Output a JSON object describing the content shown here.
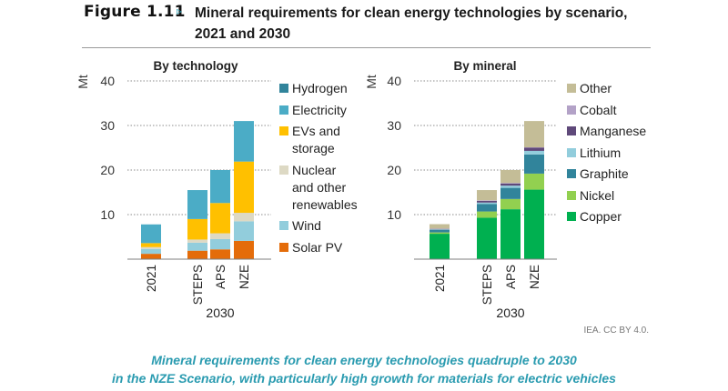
{
  "figure": {
    "number": "Figure 1.11",
    "marker": "▹",
    "title": "Mineral requirements for clean energy technologies by scenario, 2021 and 2030"
  },
  "credit": "IEA. CC BY 4.0.",
  "caption": {
    "line1": "Mineral requirements for clean energy technologies quadruple to 2030",
    "line2": "in the NZE Scenario, with particularly high growth for materials for electric vehicles",
    "color": "#2a9bb0"
  },
  "chart_data": [
    {
      "type": "bar",
      "stacked": true,
      "title": "By technology",
      "ylabel": "Mt",
      "xlabel": "",
      "ylim": [
        0,
        40
      ],
      "yticks": [
        10,
        20,
        30,
        40
      ],
      "grid": true,
      "categories": [
        "2021",
        "STEPS",
        "APS",
        "NZE"
      ],
      "category_group": {
        "label": "2030",
        "members": [
          "STEPS",
          "APS",
          "NZE"
        ]
      },
      "legend_position": "right",
      "series": [
        {
          "name": "Solar PV",
          "color": "#e46c0a",
          "values": [
            1.2,
            1.9,
            2.2,
            4.1
          ]
        },
        {
          "name": "Wind",
          "color": "#92cddc",
          "values": [
            1.1,
            1.8,
            2.3,
            4.4
          ]
        },
        {
          "name": "Nuclear\nand other\nrenewables",
          "color": "#ddd9c4",
          "values": [
            0.4,
            0.7,
            1.3,
            1.9
          ]
        },
        {
          "name": "EVs and\nstorage",
          "color": "#ffc000",
          "values": [
            0.9,
            4.6,
            6.8,
            11.5
          ]
        },
        {
          "name": "Electricity",
          "color": "#4bacc6",
          "values": [
            4.2,
            6.5,
            7.4,
            9.1
          ]
        },
        {
          "name": "Hydrogen",
          "color": "#31849b",
          "values": [
            0,
            0,
            0,
            0
          ]
        }
      ],
      "legend_order": [
        "Hydrogen",
        "Electricity",
        "EVs and\nstorage",
        "Nuclear\nand other\nrenewables",
        "Wind",
        "Solar PV"
      ]
    },
    {
      "type": "bar",
      "stacked": true,
      "title": "By mineral",
      "ylabel": "Mt",
      "xlabel": "",
      "ylim": [
        0,
        40
      ],
      "yticks": [
        10,
        20,
        30,
        40
      ],
      "grid": true,
      "categories": [
        "2021",
        "STEPS",
        "APS",
        "NZE"
      ],
      "category_group": {
        "label": "2030",
        "members": [
          "STEPS",
          "APS",
          "NZE"
        ]
      },
      "legend_position": "right",
      "series": [
        {
          "name": "Copper",
          "color": "#00b050",
          "values": [
            5.7,
            9.3,
            11.2,
            15.6
          ]
        },
        {
          "name": "Nickel",
          "color": "#92d050",
          "values": [
            0.3,
            1.4,
            2.3,
            3.6
          ]
        },
        {
          "name": "Graphite",
          "color": "#31849b",
          "values": [
            0.6,
            1.7,
            2.5,
            4.3
          ]
        },
        {
          "name": "Lithium",
          "color": "#92cddc",
          "values": [
            0.1,
            0.3,
            0.5,
            0.8
          ]
        },
        {
          "name": "Manganese",
          "color": "#5f497a",
          "values": [
            0.1,
            0.4,
            0.5,
            0.7
          ]
        },
        {
          "name": "Cobalt",
          "color": "#b3a2c7",
          "values": [
            0.05,
            0.1,
            0.1,
            0.1
          ]
        },
        {
          "name": "Other",
          "color": "#c4bd97",
          "values": [
            1.0,
            2.3,
            2.9,
            5.9
          ]
        }
      ],
      "legend_order": [
        "Other",
        "Cobalt",
        "Manganese",
        "Lithium",
        "Graphite",
        "Nickel",
        "Copper"
      ]
    }
  ]
}
